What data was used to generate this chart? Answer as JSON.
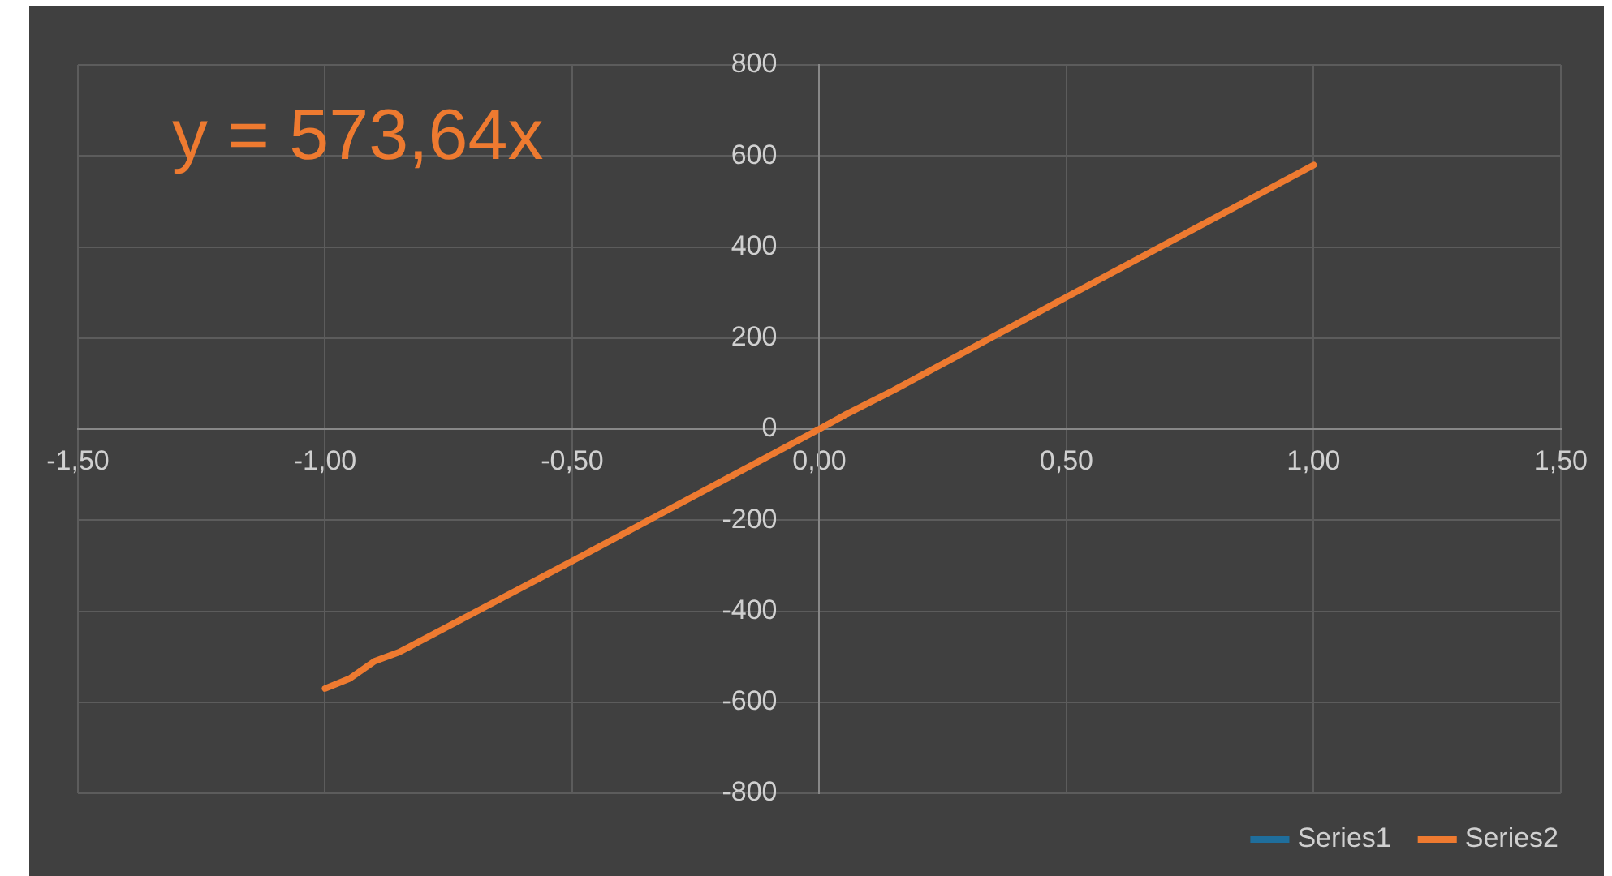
{
  "chart_data": {
    "type": "line",
    "annotations": [
      "y = 573,64x"
    ],
    "x": [
      -1,
      -0.95,
      -0.9,
      -0.85,
      -0.5,
      0,
      0.05,
      0.15,
      0.5,
      1
    ],
    "series": [
      {
        "name": "Series1",
        "color": "#1f6e9c",
        "values": [
          null,
          null,
          null,
          null,
          null,
          null,
          null,
          null,
          null,
          null
        ]
      },
      {
        "name": "Series2",
        "color": "#ee7a30",
        "values": [
          -570,
          -548,
          -510,
          -490,
          -290,
          0,
          30,
          85,
          290,
          580
        ]
      }
    ],
    "xlim": [
      -1.5,
      1.5
    ],
    "xticks": [
      {
        "value": -1.5,
        "label": "-1,50"
      },
      {
        "value": -1,
        "label": "-1,00"
      },
      {
        "value": -0.5,
        "label": "-0,50"
      },
      {
        "value": 0,
        "label": "0,00"
      },
      {
        "value": 0.5,
        "label": "0,50"
      },
      {
        "value": 1,
        "label": "1,00"
      },
      {
        "value": 1.5,
        "label": "1,50"
      }
    ],
    "ylim": [
      -800,
      800
    ],
    "yticks": [
      -800,
      -600,
      -400,
      -200,
      0,
      200,
      400,
      600,
      800
    ],
    "grid": true,
    "legend": "bottom right",
    "marker": "none"
  }
}
